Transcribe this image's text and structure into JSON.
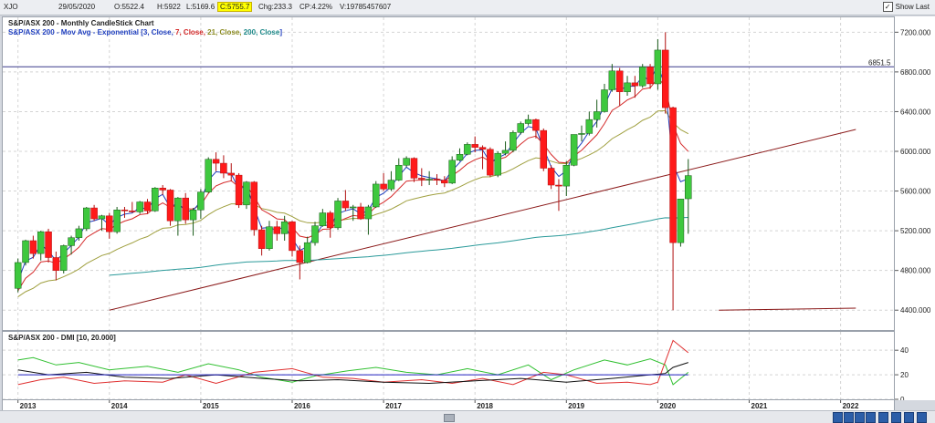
{
  "header": {
    "symbol": "XJO",
    "date": "29/05/2020",
    "open": "O:5522.4",
    "high": "H:5922",
    "low": "L:5169.6",
    "close": "C:5755.7",
    "change": "Chg:233.3",
    "change_pct": "CP:4.22%",
    "volume": "V:19785457607",
    "show_last_label": "Show Last",
    "show_last_checked": true
  },
  "main_pane": {
    "title": "S&P/ASX 200 - Monthly CandleStick Chart",
    "ma_prefix": "S&P/ASX 200 - Mov Avg - Exponential",
    "ma_params": [
      {
        "text": "[3, Close, ",
        "color": "#1f3fbf"
      },
      {
        "text": "7, Close, ",
        "color": "#d42a2a"
      },
      {
        "text": "21, Close, ",
        "color": "#8a8a20"
      },
      {
        "text": "200, Close",
        "color": "#1f8a8a"
      },
      {
        "text": "]",
        "color": "#1f3fbf"
      }
    ],
    "hline_label": "6851.5"
  },
  "dmi_pane": {
    "title": "S&P/ASX 200 - DMI [10, 20.000]"
  },
  "chart_data": [
    {
      "type": "candlestick",
      "title": "S&P/ASX 200 - Monthly CandleStick Chart",
      "ylim": [
        4200,
        7350
      ],
      "y_ticks": [
        4400,
        4800,
        5200,
        5600,
        6000,
        6400,
        6800,
        7200
      ],
      "y_tick_labels": [
        "4400.000",
        "4800.000",
        "5200.000",
        "5600.000",
        "6000.000",
        "6400.000",
        "6800.000",
        "7200.000"
      ],
      "x_range": [
        "2012-11",
        "2022-08"
      ],
      "x_ticks": [
        "2013",
        "2014",
        "2015",
        "2016",
        "2017",
        "2018",
        "2019",
        "2020",
        "2021",
        "2022"
      ],
      "grid": true,
      "colors": {
        "up": "#3ec83e",
        "down": "#ff1a1a",
        "ema3": "#1f3fbf",
        "ema7": "#d42a2a",
        "ema21": "#a0a040",
        "ema200": "#2a9a9a",
        "trend": "#8b1a1a",
        "hline": "#3a3a8a"
      },
      "horizontal_line": 6851.5,
      "trendlines": [
        {
          "from": [
            "2014-01",
            4400
          ],
          "to": [
            "2022-03",
            6220
          ]
        },
        {
          "from": [
            "2020-09",
            4400
          ],
          "to": [
            "2022-03",
            4420
          ]
        }
      ],
      "candles": [
        {
          "d": "2013-01",
          "o": 4620,
          "h": 4920,
          "l": 4580,
          "c": 4880
        },
        {
          "d": "2013-02",
          "o": 4880,
          "h": 5110,
          "l": 4850,
          "c": 5100
        },
        {
          "d": "2013-03",
          "o": 5100,
          "h": 5150,
          "l": 4920,
          "c": 4970
        },
        {
          "d": "2013-04",
          "o": 4970,
          "h": 5200,
          "l": 4900,
          "c": 5190
        },
        {
          "d": "2013-05",
          "o": 5190,
          "h": 5220,
          "l": 4880,
          "c": 4930
        },
        {
          "d": "2013-06",
          "o": 4930,
          "h": 4990,
          "l": 4700,
          "c": 4800
        },
        {
          "d": "2013-07",
          "o": 4800,
          "h": 5060,
          "l": 4770,
          "c": 5050
        },
        {
          "d": "2013-08",
          "o": 5050,
          "h": 5150,
          "l": 4960,
          "c": 5130
        },
        {
          "d": "2013-09",
          "o": 5130,
          "h": 5250,
          "l": 5100,
          "c": 5220
        },
        {
          "d": "2013-10",
          "o": 5220,
          "h": 5440,
          "l": 5200,
          "c": 5430
        },
        {
          "d": "2013-11",
          "o": 5430,
          "h": 5460,
          "l": 5300,
          "c": 5320
        },
        {
          "d": "2013-12",
          "o": 5320,
          "h": 5360,
          "l": 5200,
          "c": 5350
        },
        {
          "d": "2014-01",
          "o": 5350,
          "h": 5380,
          "l": 5120,
          "c": 5190
        },
        {
          "d": "2014-02",
          "o": 5190,
          "h": 5440,
          "l": 5170,
          "c": 5410
        },
        {
          "d": "2014-03",
          "o": 5410,
          "h": 5440,
          "l": 5330,
          "c": 5400
        },
        {
          "d": "2014-04",
          "o": 5400,
          "h": 5490,
          "l": 5380,
          "c": 5390
        },
        {
          "d": "2014-05",
          "o": 5390,
          "h": 5500,
          "l": 5370,
          "c": 5490
        },
        {
          "d": "2014-06",
          "o": 5490,
          "h": 5520,
          "l": 5370,
          "c": 5400
        },
        {
          "d": "2014-07",
          "o": 5400,
          "h": 5640,
          "l": 5390,
          "c": 5630
        },
        {
          "d": "2014-08",
          "o": 5630,
          "h": 5660,
          "l": 5560,
          "c": 5610
        },
        {
          "d": "2014-09",
          "o": 5610,
          "h": 5620,
          "l": 5250,
          "c": 5300
        },
        {
          "d": "2014-10",
          "o": 5300,
          "h": 5540,
          "l": 5150,
          "c": 5530
        },
        {
          "d": "2014-11",
          "o": 5530,
          "h": 5580,
          "l": 5270,
          "c": 5310
        },
        {
          "d": "2014-12",
          "o": 5310,
          "h": 5430,
          "l": 5150,
          "c": 5410
        },
        {
          "d": "2015-01",
          "o": 5410,
          "h": 5620,
          "l": 5320,
          "c": 5590
        },
        {
          "d": "2015-02",
          "o": 5590,
          "h": 5940,
          "l": 5580,
          "c": 5920
        },
        {
          "d": "2015-03",
          "o": 5920,
          "h": 5990,
          "l": 5800,
          "c": 5880
        },
        {
          "d": "2015-04",
          "o": 5880,
          "h": 5960,
          "l": 5730,
          "c": 5780
        },
        {
          "d": "2015-05",
          "o": 5780,
          "h": 5880,
          "l": 5700,
          "c": 5760
        },
        {
          "d": "2015-06",
          "o": 5760,
          "h": 5780,
          "l": 5430,
          "c": 5460
        },
        {
          "d": "2015-07",
          "o": 5460,
          "h": 5700,
          "l": 5420,
          "c": 5690
        },
        {
          "d": "2015-08",
          "o": 5690,
          "h": 5700,
          "l": 5150,
          "c": 5210
        },
        {
          "d": "2015-09",
          "o": 5210,
          "h": 5250,
          "l": 4950,
          "c": 5020
        },
        {
          "d": "2015-10",
          "o": 5020,
          "h": 5300,
          "l": 5000,
          "c": 5240
        },
        {
          "d": "2015-11",
          "o": 5240,
          "h": 5300,
          "l": 5100,
          "c": 5170
        },
        {
          "d": "2015-12",
          "o": 5170,
          "h": 5350,
          "l": 5100,
          "c": 5290
        },
        {
          "d": "2016-01",
          "o": 5290,
          "h": 5300,
          "l": 4940,
          "c": 5000
        },
        {
          "d": "2016-02",
          "o": 5000,
          "h": 5050,
          "l": 4710,
          "c": 4880
        },
        {
          "d": "2016-03",
          "o": 4880,
          "h": 5140,
          "l": 4870,
          "c": 5080
        },
        {
          "d": "2016-04",
          "o": 5080,
          "h": 5290,
          "l": 5050,
          "c": 5250
        },
        {
          "d": "2016-05",
          "o": 5250,
          "h": 5420,
          "l": 5240,
          "c": 5380
        },
        {
          "d": "2016-06",
          "o": 5380,
          "h": 5400,
          "l": 5130,
          "c": 5230
        },
        {
          "d": "2016-07",
          "o": 5230,
          "h": 5530,
          "l": 5210,
          "c": 5500
        },
        {
          "d": "2016-08",
          "o": 5500,
          "h": 5610,
          "l": 5400,
          "c": 5430
        },
        {
          "d": "2016-09",
          "o": 5430,
          "h": 5460,
          "l": 5300,
          "c": 5440
        },
        {
          "d": "2016-10",
          "o": 5440,
          "h": 5480,
          "l": 5310,
          "c": 5320
        },
        {
          "d": "2016-11",
          "o": 5320,
          "h": 5460,
          "l": 5160,
          "c": 5440
        },
        {
          "d": "2016-12",
          "o": 5440,
          "h": 5700,
          "l": 5430,
          "c": 5670
        },
        {
          "d": "2017-01",
          "o": 5670,
          "h": 5780,
          "l": 5600,
          "c": 5620
        },
        {
          "d": "2017-02",
          "o": 5620,
          "h": 5800,
          "l": 5600,
          "c": 5710
        },
        {
          "d": "2017-03",
          "o": 5710,
          "h": 5930,
          "l": 5700,
          "c": 5860
        },
        {
          "d": "2017-04",
          "o": 5860,
          "h": 5950,
          "l": 5840,
          "c": 5930
        },
        {
          "d": "2017-05",
          "o": 5930,
          "h": 5940,
          "l": 5690,
          "c": 5730
        },
        {
          "d": "2017-06",
          "o": 5730,
          "h": 5830,
          "l": 5650,
          "c": 5720
        },
        {
          "d": "2017-07",
          "o": 5720,
          "h": 5800,
          "l": 5660,
          "c": 5720
        },
        {
          "d": "2017-08",
          "o": 5720,
          "h": 5770,
          "l": 5660,
          "c": 5710
        },
        {
          "d": "2017-09",
          "o": 5710,
          "h": 5750,
          "l": 5640,
          "c": 5680
        },
        {
          "d": "2017-10",
          "o": 5680,
          "h": 5950,
          "l": 5670,
          "c": 5910
        },
        {
          "d": "2017-11",
          "o": 5910,
          "h": 6030,
          "l": 5900,
          "c": 5970
        },
        {
          "d": "2017-12",
          "o": 5970,
          "h": 6090,
          "l": 5960,
          "c": 6070
        },
        {
          "d": "2018-01",
          "o": 6070,
          "h": 6150,
          "l": 5990,
          "c": 6040
        },
        {
          "d": "2018-02",
          "o": 6040,
          "h": 6060,
          "l": 5820,
          "c": 6020
        },
        {
          "d": "2018-03",
          "o": 6020,
          "h": 6040,
          "l": 5740,
          "c": 5760
        },
        {
          "d": "2018-04",
          "o": 5760,
          "h": 6000,
          "l": 5740,
          "c": 5980
        },
        {
          "d": "2018-05",
          "o": 5980,
          "h": 6100,
          "l": 5960,
          "c": 6010
        },
        {
          "d": "2018-06",
          "o": 6010,
          "h": 6210,
          "l": 5990,
          "c": 6190
        },
        {
          "d": "2018-07",
          "o": 6190,
          "h": 6300,
          "l": 6170,
          "c": 6280
        },
        {
          "d": "2018-08",
          "o": 6280,
          "h": 6370,
          "l": 6260,
          "c": 6320
        },
        {
          "d": "2018-09",
          "o": 6320,
          "h": 6330,
          "l": 6130,
          "c": 6210
        },
        {
          "d": "2018-10",
          "o": 6210,
          "h": 6230,
          "l": 5800,
          "c": 5830
        },
        {
          "d": "2018-11",
          "o": 5830,
          "h": 5860,
          "l": 5620,
          "c": 5660
        },
        {
          "d": "2018-12",
          "o": 5660,
          "h": 5720,
          "l": 5400,
          "c": 5650
        },
        {
          "d": "2019-01",
          "o": 5650,
          "h": 5900,
          "l": 5550,
          "c": 5860
        },
        {
          "d": "2019-02",
          "o": 5860,
          "h": 6170,
          "l": 5850,
          "c": 6170
        },
        {
          "d": "2019-03",
          "o": 6170,
          "h": 6260,
          "l": 6100,
          "c": 6180
        },
        {
          "d": "2019-04",
          "o": 6180,
          "h": 6400,
          "l": 6160,
          "c": 6320
        },
        {
          "d": "2019-05",
          "o": 6320,
          "h": 6520,
          "l": 6240,
          "c": 6400
        },
        {
          "d": "2019-06",
          "o": 6400,
          "h": 6680,
          "l": 6390,
          "c": 6620
        },
        {
          "d": "2019-07",
          "o": 6620,
          "h": 6880,
          "l": 6600,
          "c": 6810
        },
        {
          "d": "2019-08",
          "o": 6810,
          "h": 6840,
          "l": 6460,
          "c": 6600
        },
        {
          "d": "2019-09",
          "o": 6600,
          "h": 6760,
          "l": 6560,
          "c": 6690
        },
        {
          "d": "2019-10",
          "o": 6690,
          "h": 6760,
          "l": 6540,
          "c": 6660
        },
        {
          "d": "2019-11",
          "o": 6660,
          "h": 6880,
          "l": 6640,
          "c": 6850
        },
        {
          "d": "2019-12",
          "o": 6850,
          "h": 6880,
          "l": 6630,
          "c": 6680
        },
        {
          "d": "2020-01",
          "o": 6680,
          "h": 7130,
          "l": 6620,
          "c": 7020
        },
        {
          "d": "2020-02",
          "o": 7020,
          "h": 7200,
          "l": 6380,
          "c": 6440
        },
        {
          "d": "2020-03",
          "o": 6440,
          "h": 6450,
          "l": 4400,
          "c": 5080
        },
        {
          "d": "2020-04",
          "o": 5080,
          "h": 5520,
          "l": 5040,
          "c": 5520
        },
        {
          "d": "2020-05",
          "o": 5522.4,
          "h": 5922,
          "l": 5169.6,
          "c": 5755.7
        }
      ]
    },
    {
      "type": "line",
      "title": "S&P/ASX 200 - DMI [10, 20.000]",
      "ylim": [
        0,
        55
      ],
      "y_ticks": [
        0,
        20,
        40
      ],
      "y_tick_labels": [
        "0",
        "20",
        "40"
      ],
      "threshold": 20,
      "x_range": [
        "2012-11",
        "2022-08"
      ],
      "series": [
        {
          "color": "#30c030",
          "points": [
            [
              "2013-01",
              32
            ],
            [
              "2013-03",
              34
            ],
            [
              "2013-06",
              28
            ],
            [
              "2013-09",
              30
            ],
            [
              "2014-01",
              24
            ],
            [
              "2014-06",
              27
            ],
            [
              "2014-10",
              22
            ],
            [
              "2015-02",
              29
            ],
            [
              "2015-06",
              24
            ],
            [
              "2015-09",
              18
            ],
            [
              "2016-01",
              14
            ],
            [
              "2016-04",
              19
            ],
            [
              "2016-08",
              23
            ],
            [
              "2016-12",
              26
            ],
            [
              "2017-04",
              22
            ],
            [
              "2017-08",
              20
            ],
            [
              "2017-12",
              25
            ],
            [
              "2018-04",
              20
            ],
            [
              "2018-08",
              28
            ],
            [
              "2018-11",
              16
            ],
            [
              "2019-02",
              24
            ],
            [
              "2019-06",
              32
            ],
            [
              "2019-09",
              28
            ],
            [
              "2019-12",
              33
            ],
            [
              "2020-02",
              28
            ],
            [
              "2020-03",
              12
            ],
            [
              "2020-05",
              22
            ]
          ]
        },
        {
          "color": "#e03030",
          "points": [
            [
              "2013-01",
              12
            ],
            [
              "2013-04",
              16
            ],
            [
              "2013-07",
              18
            ],
            [
              "2013-11",
              13
            ],
            [
              "2014-03",
              15
            ],
            [
              "2014-08",
              14
            ],
            [
              "2014-11",
              20
            ],
            [
              "2015-03",
              13
            ],
            [
              "2015-08",
              22
            ],
            [
              "2016-01",
              25
            ],
            [
              "2016-05",
              18
            ],
            [
              "2016-09",
              17
            ],
            [
              "2017-01",
              14
            ],
            [
              "2017-06",
              16
            ],
            [
              "2017-10",
              13
            ],
            [
              "2018-02",
              17
            ],
            [
              "2018-06",
              12
            ],
            [
              "2018-10",
              22
            ],
            [
              "2019-01",
              20
            ],
            [
              "2019-05",
              13
            ],
            [
              "2019-09",
              14
            ],
            [
              "2019-12",
              12
            ],
            [
              "2020-01",
              14
            ],
            [
              "2020-03",
              48
            ],
            [
              "2020-05",
              38
            ]
          ]
        },
        {
          "color": "#111111",
          "points": [
            [
              "2013-01",
              24
            ],
            [
              "2013-05",
              20
            ],
            [
              "2013-10",
              22
            ],
            [
              "2014-03",
              18
            ],
            [
              "2014-09",
              17
            ],
            [
              "2015-03",
              20
            ],
            [
              "2015-09",
              17
            ],
            [
              "2016-02",
              15
            ],
            [
              "2016-07",
              16
            ],
            [
              "2017-01",
              14
            ],
            [
              "2017-07",
              13
            ],
            [
              "2018-01",
              15
            ],
            [
              "2018-07",
              17
            ],
            [
              "2019-01",
              14
            ],
            [
              "2019-07",
              17
            ],
            [
              "2019-12",
              20
            ],
            [
              "2020-02",
              21
            ],
            [
              "2020-03",
              26
            ],
            [
              "2020-05",
              30
            ]
          ]
        },
        {
          "color": "#2020c0",
          "points": [
            [
              "2013-01",
              20
            ],
            [
              "2020-05",
              20
            ]
          ]
        }
      ]
    }
  ]
}
